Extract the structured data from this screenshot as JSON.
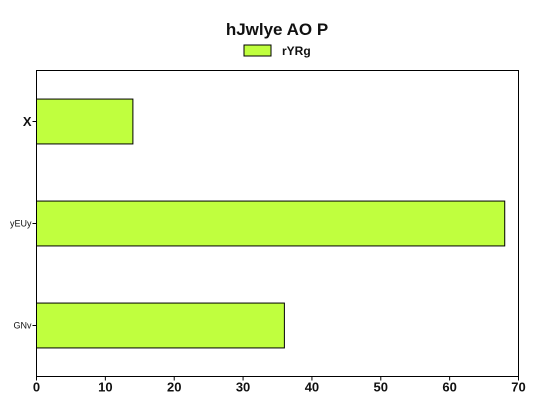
{
  "chart_data": {
    "type": "bar",
    "orientation": "horizontal",
    "title": "hJwlye AO P",
    "xlabel": "",
    "ylabel": "",
    "categories": [
      "X",
      "yEUy",
      "GNv"
    ],
    "series": [
      {
        "name": "rYRg",
        "values": [
          14,
          68,
          36
        ],
        "color": "#c0ff3e"
      }
    ],
    "xlim": [
      0,
      70
    ],
    "xticks": [
      0,
      10,
      20,
      30,
      40,
      50,
      60,
      70
    ],
    "grid": false,
    "legend": "top-center"
  }
}
